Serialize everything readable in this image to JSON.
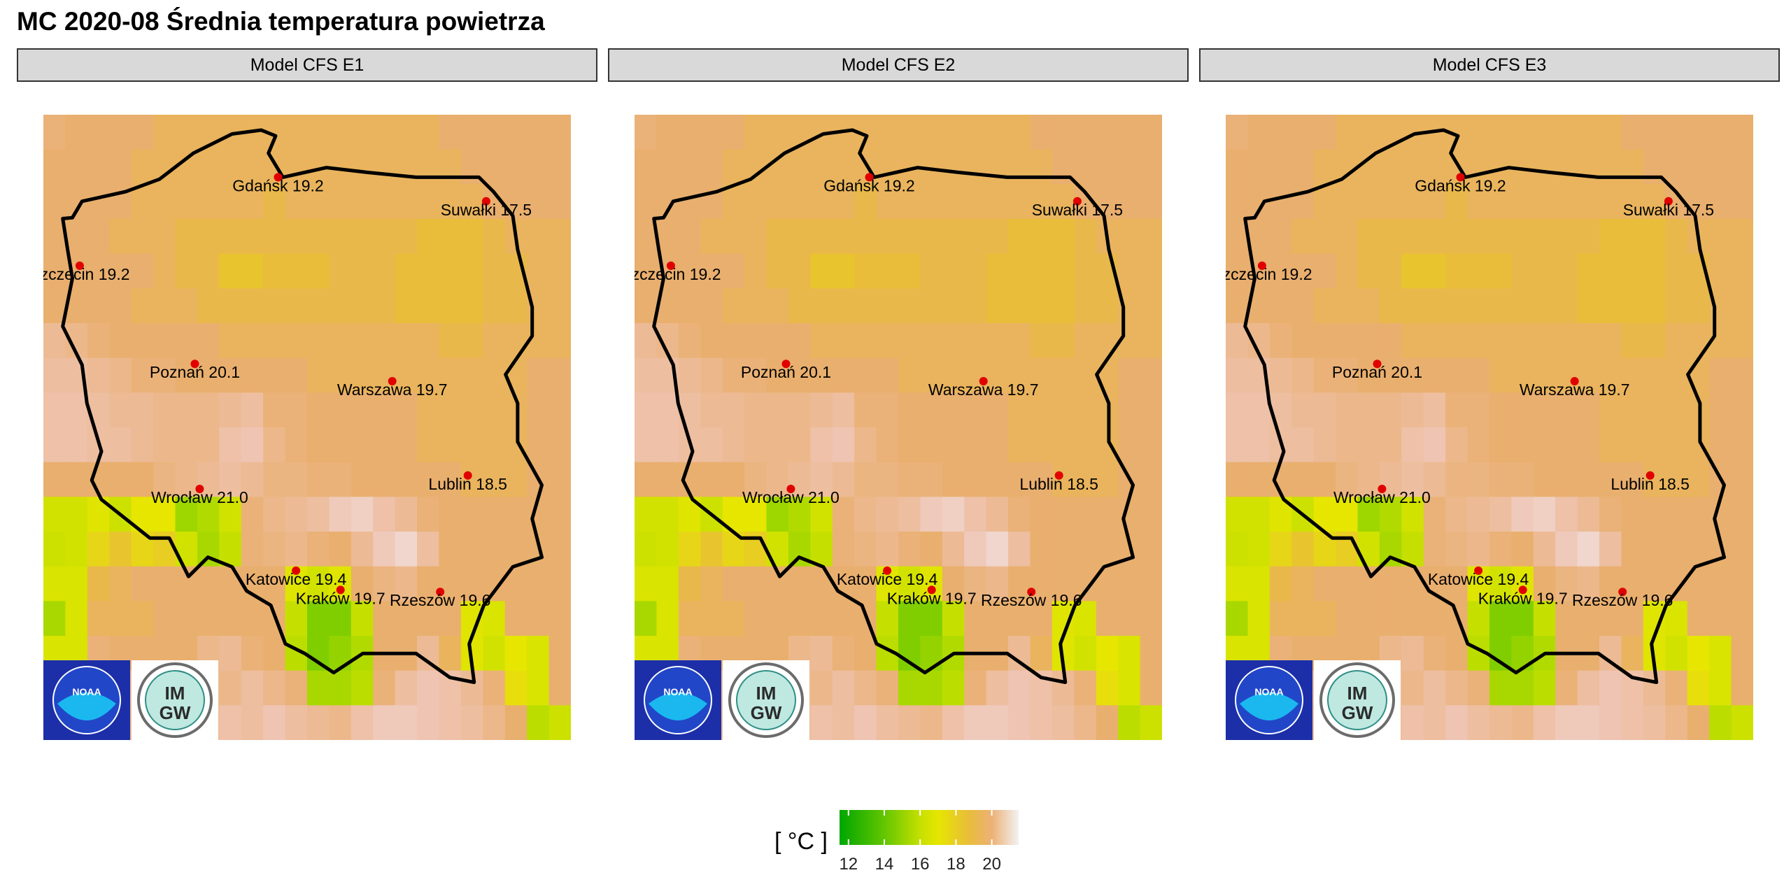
{
  "page": {
    "title": "MC 2020-08 Średnia temperatura powietrza"
  },
  "chart_data": [
    {
      "type": "heatmap",
      "panel_title": "Model CFS E1",
      "unit": "[ °C ]",
      "points": [
        {
          "city": "Gdańsk",
          "value": 19.2
        },
        {
          "city": "Suwałki",
          "value": 17.5
        },
        {
          "city": "Szczecin",
          "value": 19.2
        },
        {
          "city": "Poznań",
          "value": 20.1
        },
        {
          "city": "Warszawa",
          "value": 19.7
        },
        {
          "city": "Wrocław",
          "value": 21.0
        },
        {
          "city": "Lublin",
          "value": 18.5
        },
        {
          "city": "Katowice",
          "value": 19.4
        },
        {
          "city": "Kraków",
          "value": 19.7
        },
        {
          "city": "Rzeszów",
          "value": 19.6
        }
      ]
    },
    {
      "type": "heatmap",
      "panel_title": "Model CFS E2",
      "unit": "[ °C ]",
      "points": [
        {
          "city": "Gdańsk",
          "value": 19.2
        },
        {
          "city": "Suwałki",
          "value": 17.5
        },
        {
          "city": "Szczecin",
          "value": 19.2
        },
        {
          "city": "Poznań",
          "value": 20.1
        },
        {
          "city": "Warszawa",
          "value": 19.7
        },
        {
          "city": "Wrocław",
          "value": 21.0
        },
        {
          "city": "Lublin",
          "value": 18.5
        },
        {
          "city": "Katowice",
          "value": 19.4
        },
        {
          "city": "Kraków",
          "value": 19.7
        },
        {
          "city": "Rzeszów",
          "value": 19.6
        }
      ]
    },
    {
      "type": "heatmap",
      "panel_title": "Model CFS E3",
      "unit": "[ °C ]",
      "points": [
        {
          "city": "Gdańsk",
          "value": 19.2
        },
        {
          "city": "Suwałki",
          "value": 17.5
        },
        {
          "city": "Szczecin",
          "value": 19.2
        },
        {
          "city": "Poznań",
          "value": 20.1
        },
        {
          "city": "Warszawa",
          "value": 19.7
        },
        {
          "city": "Wrocław",
          "value": 21.0
        },
        {
          "city": "Lublin",
          "value": 18.5
        },
        {
          "city": "Katowice",
          "value": 19.4
        },
        {
          "city": "Kraków",
          "value": 19.7
        },
        {
          "city": "Rzeszów",
          "value": 19.6
        }
      ]
    }
  ],
  "grid_values": [
    [
      18.8,
      18.6,
      18.6,
      18.6,
      18.6,
      18.4,
      18.4,
      18.4,
      18.4,
      18.4,
      18.4,
      18.4,
      18.4,
      18.4,
      18.4,
      18.4,
      18.4,
      18.4,
      18.6,
      18.6,
      18.6,
      18.6,
      18.6,
      18.6
    ],
    [
      18.6,
      18.6,
      18.6,
      18.6,
      18.4,
      18.4,
      18.4,
      18.4,
      18.4,
      18.4,
      18.4,
      18.4,
      18.4,
      18.4,
      18.4,
      18.4,
      18.4,
      18.4,
      18.4,
      18.6,
      18.6,
      18.6,
      18.6,
      18.6
    ],
    [
      18.6,
      18.6,
      18.6,
      18.6,
      18.4,
      18.4,
      18.4,
      18.4,
      18.4,
      18.4,
      18.2,
      18.4,
      18.4,
      18.4,
      18.4,
      18.4,
      18.4,
      18.4,
      18.4,
      18.4,
      18.6,
      18.6,
      18.6,
      18.6
    ],
    [
      18.6,
      18.6,
      18.6,
      18.4,
      18.4,
      18.4,
      18.2,
      18.2,
      18.2,
      18.2,
      18.2,
      18.2,
      18.2,
      18.2,
      18.2,
      18.2,
      18.2,
      18.0,
      18.0,
      18.0,
      18.2,
      18.4,
      18.4,
      18.4
    ],
    [
      18.6,
      18.6,
      18.6,
      18.6,
      18.6,
      18.4,
      18.2,
      18.2,
      17.8,
      17.8,
      18.0,
      18.0,
      18.0,
      18.2,
      18.2,
      18.2,
      18.0,
      18.0,
      18.0,
      18.0,
      18.2,
      18.2,
      18.4,
      18.4
    ],
    [
      18.6,
      18.6,
      18.6,
      18.6,
      18.4,
      18.4,
      18.4,
      18.2,
      18.2,
      18.2,
      18.2,
      18.2,
      18.2,
      18.2,
      18.2,
      18.2,
      18.0,
      18.0,
      18.0,
      18.0,
      18.2,
      18.2,
      18.4,
      18.4
    ],
    [
      19.4,
      19.2,
      18.8,
      18.6,
      18.6,
      18.6,
      18.6,
      18.6,
      18.4,
      18.4,
      18.4,
      18.4,
      18.4,
      18.4,
      18.4,
      18.4,
      18.4,
      18.4,
      18.2,
      18.2,
      18.4,
      18.4,
      18.4,
      18.4
    ],
    [
      19.6,
      19.6,
      19.4,
      19.2,
      18.8,
      18.8,
      18.6,
      18.6,
      18.6,
      18.6,
      18.6,
      18.6,
      18.4,
      18.4,
      18.4,
      18.4,
      18.4,
      18.4,
      18.4,
      18.4,
      18.4,
      18.4,
      18.6,
      18.6
    ],
    [
      19.8,
      19.8,
      19.6,
      19.4,
      19.4,
      19.2,
      19.2,
      19.2,
      19.4,
      19.6,
      18.8,
      18.8,
      18.6,
      18.6,
      18.6,
      18.6,
      18.6,
      18.4,
      18.4,
      18.4,
      18.4,
      18.4,
      18.6,
      18.6
    ],
    [
      19.8,
      19.8,
      19.6,
      19.6,
      19.4,
      19.2,
      19.2,
      19.2,
      19.8,
      20.0,
      19.2,
      18.8,
      18.6,
      18.6,
      18.6,
      18.6,
      18.6,
      18.4,
      18.4,
      18.4,
      18.4,
      18.4,
      18.6,
      18.6
    ],
    [
      18.6,
      18.6,
      18.6,
      18.6,
      18.6,
      19.0,
      19.2,
      19.4,
      19.6,
      19.4,
      19.0,
      19.0,
      18.8,
      18.8,
      18.6,
      18.6,
      18.6,
      18.6,
      18.6,
      18.4,
      18.4,
      18.4,
      18.6,
      18.6
    ],
    [
      16.4,
      16.4,
      16.8,
      16.2,
      17.0,
      17.0,
      15.2,
      15.6,
      16.4,
      18.8,
      19.2,
      19.4,
      19.6,
      20.2,
      20.4,
      19.8,
      19.4,
      18.8,
      18.6,
      18.6,
      18.6,
      18.6,
      18.6,
      18.6
    ],
    [
      16.2,
      16.4,
      17.4,
      17.8,
      17.4,
      17.6,
      16.4,
      15.4,
      16.0,
      18.8,
      19.0,
      19.2,
      18.8,
      18.6,
      19.4,
      20.2,
      20.6,
      19.6,
      18.6,
      18.6,
      18.6,
      18.6,
      18.6,
      18.6
    ],
    [
      16.6,
      16.6,
      18.2,
      18.4,
      18.6,
      18.6,
      18.6,
      18.6,
      18.6,
      18.6,
      18.6,
      16.8,
      16.4,
      16.8,
      18.6,
      19.0,
      19.2,
      18.6,
      18.6,
      18.6,
      18.6,
      18.6,
      18.6,
      18.6
    ],
    [
      15.4,
      16.6,
      18.4,
      18.4,
      18.4,
      18.6,
      18.6,
      18.6,
      18.6,
      18.6,
      18.6,
      16.0,
      14.6,
      14.6,
      16.0,
      18.6,
      18.6,
      18.6,
      18.6,
      16.8,
      16.6,
      18.6,
      18.6,
      18.6
    ],
    [
      16.6,
      16.6,
      18.8,
      18.6,
      18.6,
      18.6,
      18.6,
      19.2,
      19.4,
      18.8,
      18.6,
      15.8,
      14.6,
      15.0,
      15.6,
      18.6,
      18.6,
      19.4,
      18.4,
      16.8,
      16.4,
      17.0,
      16.6,
      18.6
    ],
    [
      16.6,
      16.6,
      19.6,
      19.6,
      19.6,
      19.6,
      19.2,
      19.4,
      19.2,
      19.6,
      19.2,
      18.8,
      15.4,
      15.4,
      15.8,
      18.8,
      19.6,
      20.0,
      19.8,
      19.4,
      18.8,
      17.2,
      16.6,
      18.6
    ],
    [
      19.6,
      19.8,
      19.6,
      19.4,
      19.6,
      19.4,
      19.2,
      19.4,
      19.8,
      19.6,
      20.0,
      19.6,
      19.4,
      19.2,
      19.8,
      20.2,
      20.2,
      20.0,
      19.8,
      19.6,
      19.2,
      18.6,
      15.8,
      16.2
    ]
  ],
  "legend": {
    "unit": "[ °C ]",
    "tick_labels": [
      "12",
      "14",
      "16",
      "18",
      "20"
    ],
    "ticks": [
      12,
      14,
      16,
      18,
      20
    ],
    "min": 11.5,
    "max": 21.5
  },
  "logos": [
    "noaa-logo",
    "imgw-logo"
  ],
  "logo_text": {
    "noaa": "NOAA",
    "imgw_top": "IM",
    "imgw_bottom": "GW"
  }
}
